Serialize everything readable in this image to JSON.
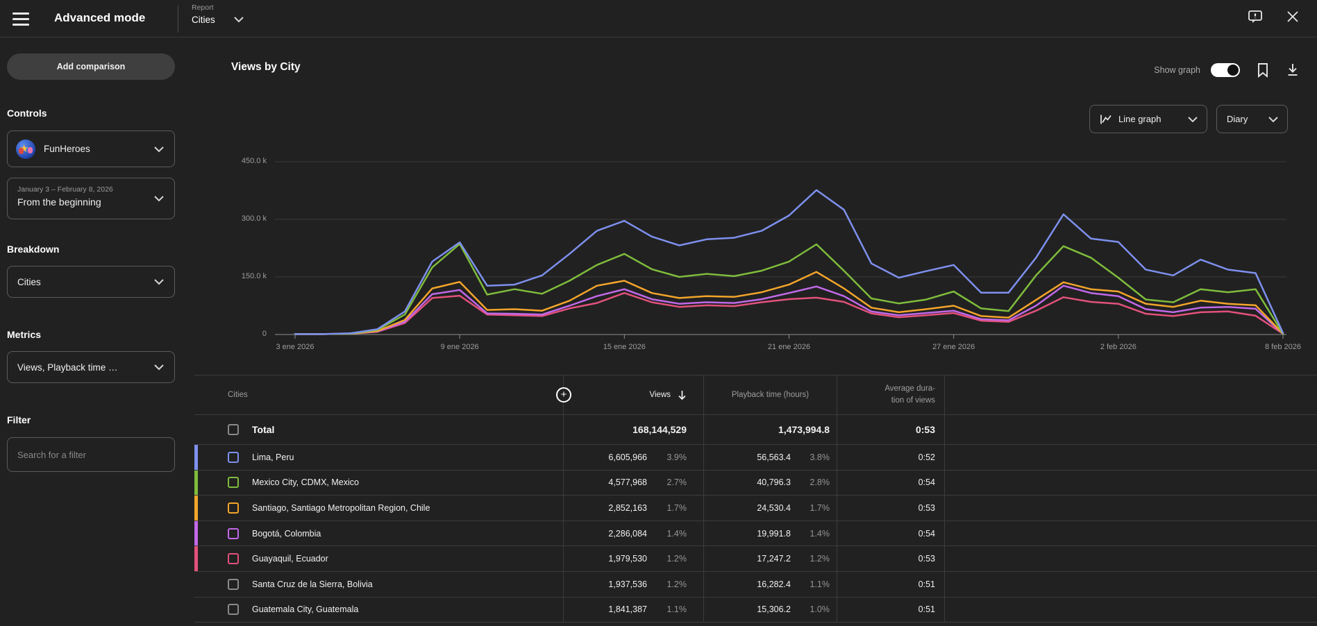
{
  "topbar": {
    "title": "Advanced mode",
    "report_label": "Report",
    "report_value": "Cities"
  },
  "sidebar": {
    "add_comparison": "Add comparison",
    "controls_heading": "Controls",
    "channel_name": "FunHeroes",
    "date_range_label": "January 3 – February 8, 2026",
    "date_range_value": "From the beginning",
    "breakdown_heading": "Breakdown",
    "breakdown_value": "Cities",
    "metrics_heading": "Metrics",
    "metrics_value": "Views, Playback time …",
    "filter_heading": "Filter",
    "filter_placeholder": "Search for a filter"
  },
  "main": {
    "title": "Views by City",
    "show_graph_label": "Show graph",
    "chart_type_value": "Line graph",
    "granularity_value": "Diary"
  },
  "icons": {
    "hamburger-menu-icon": "three horizontal bars",
    "chevron-down-icon": "⌄",
    "feedback-icon": "speech bubble with !",
    "close-icon": "✕",
    "bookmark-icon": "outline bookmark",
    "download-icon": "arrow down to line",
    "line-chart-icon": "zigzag line with axis",
    "plus-circle-icon": "+",
    "sort-desc-icon": "↓"
  },
  "chart_data": {
    "type": "line",
    "title": "Views by City",
    "unit": "views",
    "granularity": "daily",
    "num_points": 37,
    "ylim_k": [
      0,
      450
    ],
    "grid": "horizontal",
    "y_ticks": [
      {
        "label": "450.0 k",
        "value_k": 450
      },
      {
        "label": "300.0 k",
        "value_k": 300
      },
      {
        "label": "150.0 k",
        "value_k": 150
      },
      {
        "label": "0",
        "value_k": 0
      }
    ],
    "x_ticks": [
      {
        "label": "3 ene 2026",
        "index": 0
      },
      {
        "label": "9 ene 2026",
        "index": 6
      },
      {
        "label": "15 ene 2026",
        "index": 12
      },
      {
        "label": "21 ene 2026",
        "index": 18
      },
      {
        "label": "27 ene 2026",
        "index": 24
      },
      {
        "label": "2 feb 2026",
        "index": 30
      },
      {
        "label": "8 feb 2026",
        "index": 36
      }
    ],
    "series": [
      {
        "name": "Lima, Peru",
        "color": "#7e90ee",
        "values_k": [
          1,
          1,
          3,
          14,
          60,
          190,
          240,
          127,
          130,
          154,
          210,
          270,
          296,
          255,
          232,
          248,
          252,
          270,
          310,
          376,
          325,
          185,
          148,
          165,
          181,
          109,
          109,
          200,
          313,
          250,
          241,
          169,
          154,
          195,
          169,
          160,
          4
        ]
      },
      {
        "name": "Mexico City, CDMX, Mexico",
        "color": "#7fbc3c",
        "values_k": [
          1,
          1,
          2,
          12,
          52,
          175,
          236,
          104,
          118,
          106,
          140,
          181,
          210,
          170,
          150,
          158,
          152,
          166,
          190,
          235,
          166,
          94,
          81,
          91,
          112,
          68,
          61,
          154,
          230,
          200,
          148,
          91,
          84,
          118,
          110,
          118,
          2
        ]
      },
      {
        "name": "Santiago, Santiago Metropolitan Region, Chile",
        "color": "#f3a52b",
        "values_k": [
          1,
          1,
          2,
          9,
          38,
          120,
          137,
          64,
          66,
          62,
          88,
          127,
          140,
          108,
          95,
          100,
          98,
          110,
          130,
          163,
          120,
          70,
          58,
          66,
          75,
          48,
          44,
          90,
          136,
          118,
          112,
          80,
          72,
          88,
          80,
          76,
          2
        ]
      },
      {
        "name": "Bogotá, Colombia",
        "color": "#c169e8",
        "values_k": [
          1,
          1,
          2,
          8,
          33,
          105,
          116,
          55,
          54,
          52,
          75,
          100,
          118,
          92,
          80,
          84,
          82,
          92,
          108,
          125,
          100,
          60,
          50,
          56,
          62,
          40,
          37,
          75,
          127,
          108,
          100,
          66,
          58,
          70,
          72,
          67,
          2
        ]
      },
      {
        "name": "Guayaquil, Ecuador",
        "color": "#e2517c",
        "values_k": [
          1,
          1,
          2,
          7,
          30,
          95,
          101,
          52,
          50,
          48,
          68,
          82,
          108,
          84,
          72,
          76,
          74,
          84,
          92,
          96,
          85,
          55,
          45,
          50,
          56,
          36,
          33,
          62,
          97,
          85,
          80,
          54,
          48,
          58,
          60,
          49,
          2
        ]
      }
    ]
  },
  "table": {
    "header": {
      "cities": "Cities",
      "views": "Views",
      "playback": "Playback time (hours)",
      "avg_duration": "Average dura-\ntion of views"
    },
    "total": {
      "label": "Total",
      "views": "168,144,529",
      "playback": "1,473,994.8",
      "avg": "0:53"
    },
    "rows": [
      {
        "city": "Lima, Peru",
        "views": "6,605,966",
        "views_pct": "3.9%",
        "playback": "56,563.4",
        "playback_pct": "3.8%",
        "avg": "0:52",
        "color": "#7e90ee"
      },
      {
        "city": "Mexico City, CDMX, Mexico",
        "views": "4,577,968",
        "views_pct": "2.7%",
        "playback": "40,796.3",
        "playback_pct": "2.8%",
        "avg": "0:54",
        "color": "#7fbc3c"
      },
      {
        "city": "Santiago, Santiago Metropolitan Region, Chile",
        "views": "2,852,163",
        "views_pct": "1.7%",
        "playback": "24,530.4",
        "playback_pct": "1.7%",
        "avg": "0:53",
        "color": "#f3a52b"
      },
      {
        "city": "Bogotá, Colombia",
        "views": "2,286,084",
        "views_pct": "1.4%",
        "playback": "19,991.8",
        "playback_pct": "1.4%",
        "avg": "0:54",
        "color": "#c169e8"
      },
      {
        "city": "Guayaquil, Ecuador",
        "views": "1,979,530",
        "views_pct": "1.2%",
        "playback": "17,247.2",
        "playback_pct": "1.2%",
        "avg": "0:53",
        "color": "#e2517c"
      },
      {
        "city": "Santa Cruz de la Sierra, Bolivia",
        "views": "1,937,536",
        "views_pct": "1.2%",
        "playback": "16,282.4",
        "playback_pct": "1.1%",
        "avg": "0:51",
        "color": null
      },
      {
        "city": "Guatemala City, Guatemala",
        "views": "1,841,387",
        "views_pct": "1.1%",
        "playback": "15,306.2",
        "playback_pct": "1.0%",
        "avg": "0:51",
        "color": null
      }
    ]
  }
}
